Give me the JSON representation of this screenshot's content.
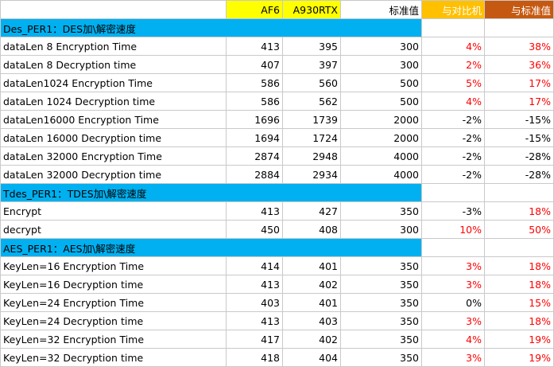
{
  "header": {
    "label": "",
    "af6": "AF6",
    "a930rtx": "A930RTX",
    "standard": "标准值",
    "compare": "与对比机",
    "vs_standard": "与标准值"
  },
  "sections": [
    {
      "title": "Des_PER1：DES加\\解密速度",
      "rows": [
        {
          "label": "dataLen 8 Encryption Time",
          "af6": "413",
          "a930rtx": "395",
          "standard": "300",
          "compare": "4%",
          "vs_standard": "38%"
        },
        {
          "label": "dataLen 8  Decryption time",
          "af6": "407",
          "a930rtx": "397",
          "standard": "300",
          "compare": "2%",
          "vs_standard": "36%"
        },
        {
          "label": "dataLen1024 Encryption Time",
          "af6": "586",
          "a930rtx": "560",
          "standard": "500",
          "compare": "5%",
          "vs_standard": "17%"
        },
        {
          "label": "dataLen 1024  Decryption time",
          "af6": "586",
          "a930rtx": "562",
          "standard": "500",
          "compare": "4%",
          "vs_standard": "17%"
        },
        {
          "label": "dataLen16000 Encryption Time",
          "af6": "1696",
          "a930rtx": "1739",
          "standard": "2000",
          "compare": "-2%",
          "vs_standard": "-15%"
        },
        {
          "label": "dataLen 16000  Decryption time",
          "af6": "1694",
          "a930rtx": "1724",
          "standard": "2000",
          "compare": "-2%",
          "vs_standard": "-15%"
        },
        {
          "label": "dataLen 32000 Encryption Time",
          "af6": "2874",
          "a930rtx": "2948",
          "standard": "4000",
          "compare": "-2%",
          "vs_standard": "-28%"
        },
        {
          "label": "dataLen 32000  Decryption time",
          "af6": "2884",
          "a930rtx": "2934",
          "standard": "4000",
          "compare": "-2%",
          "vs_standard": "-28%"
        }
      ]
    },
    {
      "title": "Tdes_PER1：TDES加\\解密速度",
      "rows": [
        {
          "label": "Encrypt",
          "af6": "413",
          "a930rtx": "427",
          "standard": "350",
          "compare": "-3%",
          "vs_standard": "18%"
        },
        {
          "label": "decrypt",
          "af6": "450",
          "a930rtx": "408",
          "standard": "300",
          "compare": "10%",
          "vs_standard": "50%"
        }
      ]
    },
    {
      "title": "AES_PER1：AES加\\解密速度",
      "rows": [
        {
          "label": "KeyLen=16 Encryption Time",
          "af6": "414",
          "a930rtx": "401",
          "standard": "350",
          "compare": "3%",
          "vs_standard": "18%"
        },
        {
          "label": "KeyLen=16 Decryption time",
          "af6": "413",
          "a930rtx": "402",
          "standard": "350",
          "compare": "3%",
          "vs_standard": "18%"
        },
        {
          "label": "KeyLen=24 Encryption Time",
          "af6": "403",
          "a930rtx": "401",
          "standard": "350",
          "compare": "0%",
          "vs_standard": "15%"
        },
        {
          "label": "KeyLen=24 Decryption time",
          "af6": "413",
          "a930rtx": "403",
          "standard": "350",
          "compare": "3%",
          "vs_standard": "18%"
        },
        {
          "label": "KeyLen=32 Encryption Time",
          "af6": "417",
          "a930rtx": "402",
          "standard": "350",
          "compare": "4%",
          "vs_standard": "19%"
        },
        {
          "label": "KeyLen=32 Decryption time",
          "af6": "418",
          "a930rtx": "404",
          "standard": "350",
          "compare": "3%",
          "vs_standard": "19%"
        }
      ]
    }
  ],
  "colors": {
    "header_yellow": "#ffff00",
    "header_orange": "#ffc000",
    "header_brown": "#c65911",
    "section_blue": "#00b0f0",
    "positive_red": "#ff0000"
  }
}
